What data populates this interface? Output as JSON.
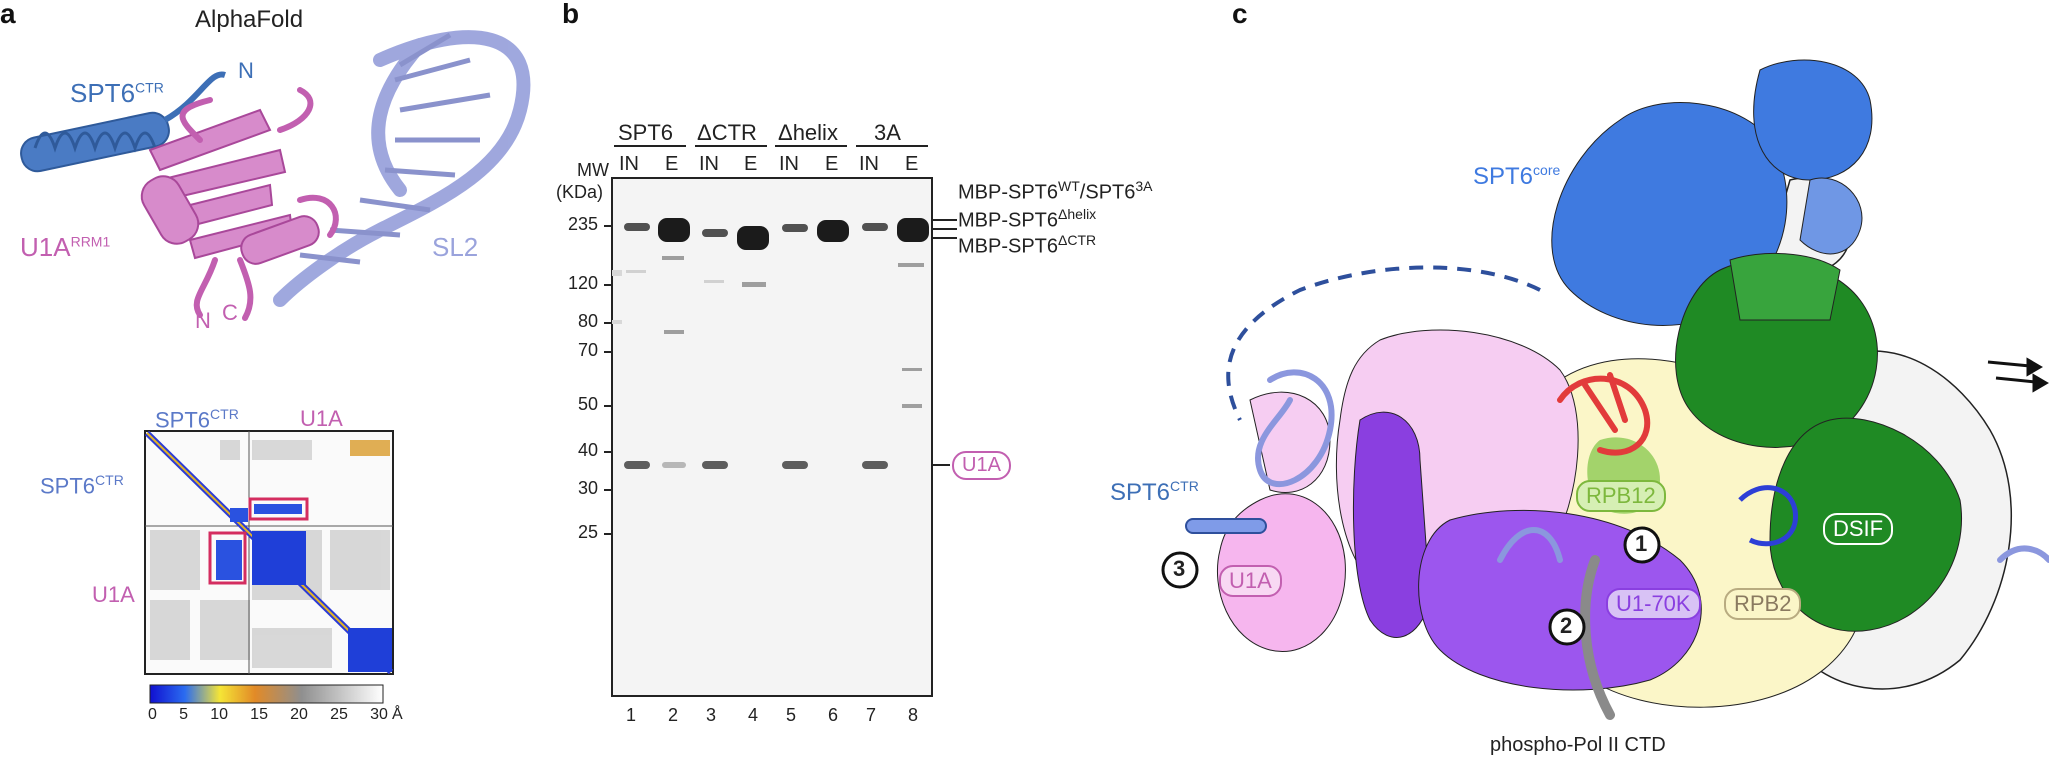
{
  "panels": {
    "a": "a",
    "b": "b",
    "c": "c"
  },
  "panel_a": {
    "title": "AlphaFold",
    "labels": {
      "spt6": "SPT6",
      "spt6_sup": "CTR",
      "u1a": "U1A",
      "u1a_sup": "RRM1",
      "sl2": "SL2",
      "n1": "N",
      "n2": "N",
      "c1": "C"
    },
    "pae": {
      "top_left": "SPT6",
      "top_left_sup": "CTR",
      "top_right": "U1A",
      "left_top": "SPT6",
      "left_top_sup": "CTR",
      "left_bottom": "U1A",
      "scale_ticks": [
        "0",
        "5",
        "10",
        "15",
        "20",
        "25",
        "30"
      ],
      "scale_unit": "Å"
    }
  },
  "panel_b": {
    "groups": [
      "SPT6",
      "ΔCTR",
      "Δhelix",
      "3A"
    ],
    "lane_types": [
      "IN",
      "E",
      "IN",
      "E",
      "IN",
      "E",
      "IN",
      "E"
    ],
    "lane_numbers": [
      "1",
      "2",
      "3",
      "4",
      "5",
      "6",
      "7",
      "8"
    ],
    "mw_header_1": "MW",
    "mw_header_2": "(KDa)",
    "mw_markers": [
      "235",
      "120",
      "80",
      "70",
      "50",
      "40",
      "30",
      "25"
    ],
    "band_labels": {
      "wt_prefix": "MBP-SPT6",
      "wt_sup": "WT",
      "wt_mid": "/SPT6",
      "wt_sup2": "3A",
      "helix_prefix": "MBP-SPT6",
      "helix_sup": "Δhelix",
      "ctr_prefix": "MBP-SPT6",
      "ctr_sup": "ΔCTR",
      "u1a": "U1A"
    }
  },
  "panel_c": {
    "labels": {
      "spt6core": "SPT6",
      "spt6core_sup": "core",
      "spt6ctr": "SPT6",
      "spt6ctr_sup": "CTR",
      "rpb12": "RPB12",
      "u1a": "U1A",
      "u170k": "U1-70K",
      "rpb2": "RPB2",
      "dsif": "DSIF",
      "ctd": "phospho-Pol II CTD",
      "num1": "1",
      "num2": "2",
      "num3": "3"
    }
  },
  "colors": {
    "spt6_blue": "#3d6fb6",
    "u1a_pink": "#c25fb0",
    "sl2_lavender": "#9aa3dc",
    "core_blue": "#3f7ae0",
    "dsif_green": "#1f8a24",
    "u170k_purple": "#8a3fe0",
    "rpb12_green": "#a3d36b",
    "rpb2_yellow": "#fbf6c8",
    "highlight_red": "#d42d60"
  }
}
